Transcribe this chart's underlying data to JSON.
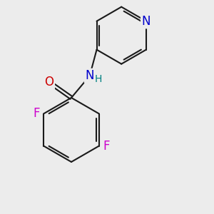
{
  "background_color": "#ececec",
  "bond_color": "#1a1a1a",
  "atom_colors": {
    "N_pyridine": "#0000cc",
    "N_amide": "#0000cc",
    "O": "#cc0000",
    "F": "#cc00cc",
    "H": "#008080",
    "C": "#1a1a1a"
  },
  "font_size_atoms": 12,
  "font_size_h": 10
}
